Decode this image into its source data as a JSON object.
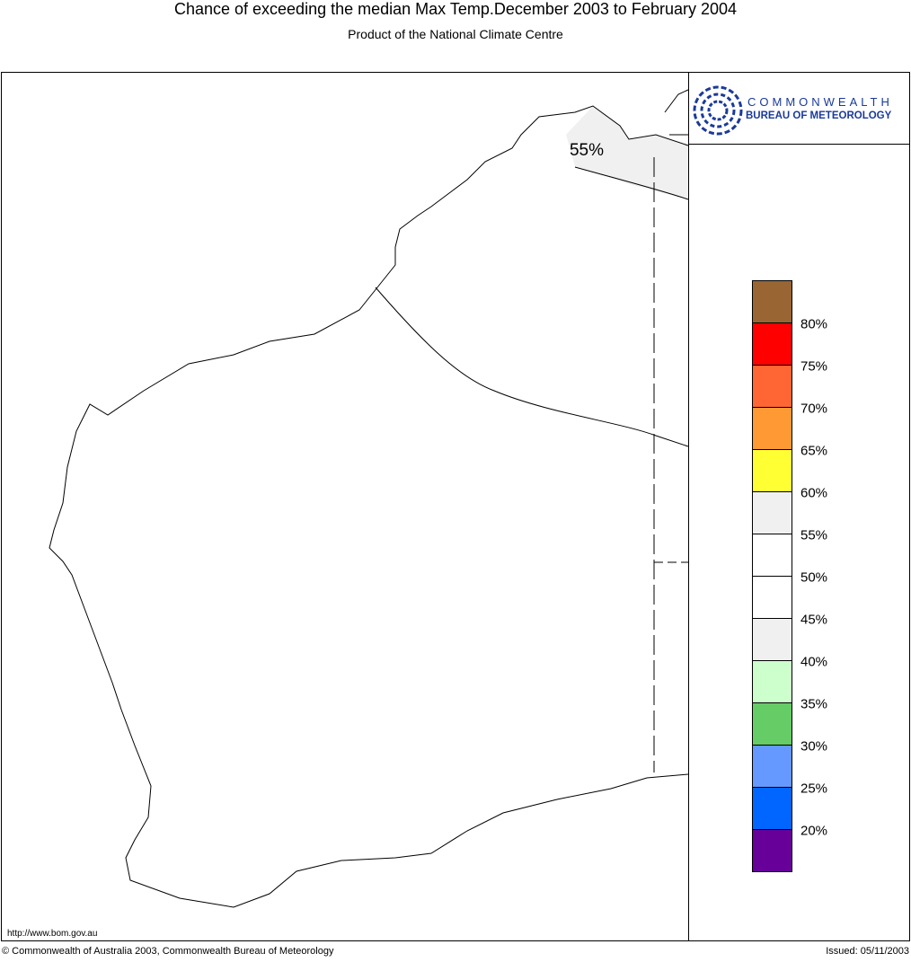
{
  "header": {
    "title": "Chance of exceeding the median Max Temp.December 2003 to February 2004",
    "subtitle": "Product of the National Climate Centre"
  },
  "map": {
    "annotation": "55%",
    "annotation_region_color": "#f0f0f0"
  },
  "logo": {
    "line1": "COMMONWEALTH",
    "line2": "BUREAU OF METEOROLOGY"
  },
  "legend": {
    "colors": [
      "#996633",
      "#ff0000",
      "#ff6633",
      "#ff9933",
      "#ffff33",
      "#f0f0f0",
      "#ffffff",
      "#ffffff",
      "#f0f0f0",
      "#ccffcc",
      "#66cc66",
      "#6699ff",
      "#0066ff",
      "#660099"
    ],
    "labels": [
      "80%",
      "75%",
      "70%",
      "65%",
      "60%",
      "55%",
      "50%",
      "45%",
      "40%",
      "35%",
      "30%",
      "25%",
      "20%"
    ]
  },
  "footer": {
    "url": "http://www.bom.gov.au",
    "copyright": "© Commonwealth of Australia 2003, Commonwealth Bureau of Meteorology",
    "issued": "Issued: 05/11/2003"
  }
}
